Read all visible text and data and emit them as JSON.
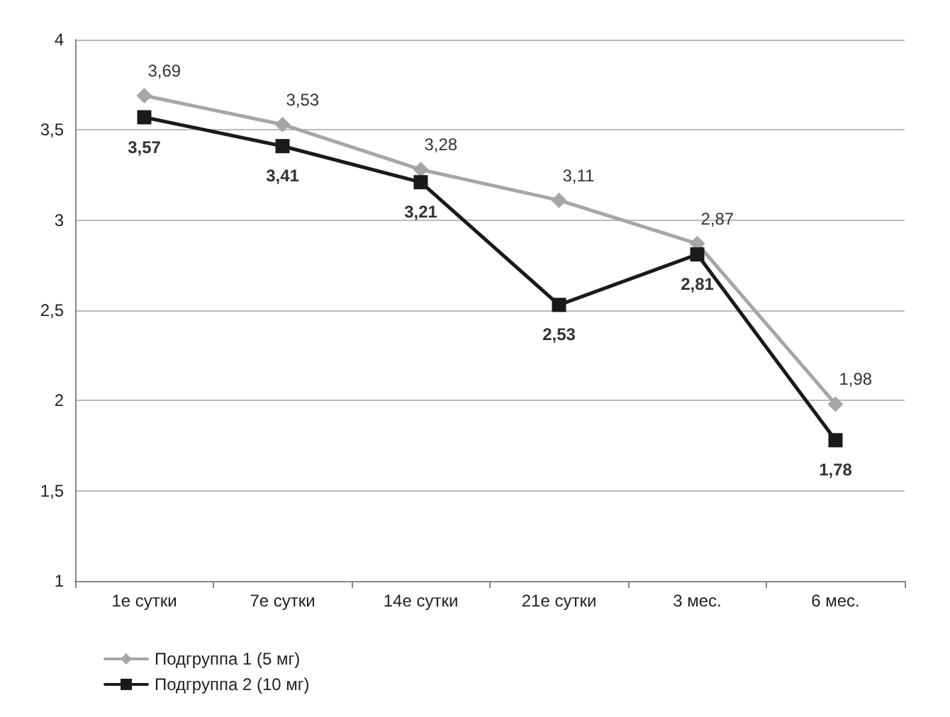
{
  "chart_data": {
    "type": "line",
    "categories": [
      "1е сутки",
      "7е сутки",
      "14е сутки",
      "21е сутки",
      "3 мес.",
      "6 мес."
    ],
    "ylim": [
      1,
      4
    ],
    "yticks": [
      1,
      {
        "value": 1.5,
        "label": "1,5"
      },
      2,
      {
        "value": 2.5,
        "label": "2,5"
      },
      3,
      {
        "value": 3.5,
        "label": "3,5"
      },
      4
    ],
    "grid": "y",
    "legend": "bottom left",
    "series": [
      {
        "name": "Подгруппа 1 (5 мг)",
        "color": "#a6a6a6",
        "marker": "diamond",
        "values": [
          3.69,
          3.53,
          3.28,
          3.11,
          2.87,
          1.98
        ],
        "value_labels": [
          "3,69",
          "3,53",
          "3,28",
          "3,11",
          "2,87",
          "1,98"
        ]
      },
      {
        "name": "Подгруппа 2 (10 мг)",
        "color": "#1a1a1a",
        "marker": "square",
        "values": [
          3.57,
          3.41,
          3.21,
          2.53,
          2.81,
          1.78
        ],
        "value_labels": [
          "3,57",
          "3,41",
          "3,21",
          "2,53",
          "2,81",
          "1,78"
        ]
      }
    ]
  }
}
